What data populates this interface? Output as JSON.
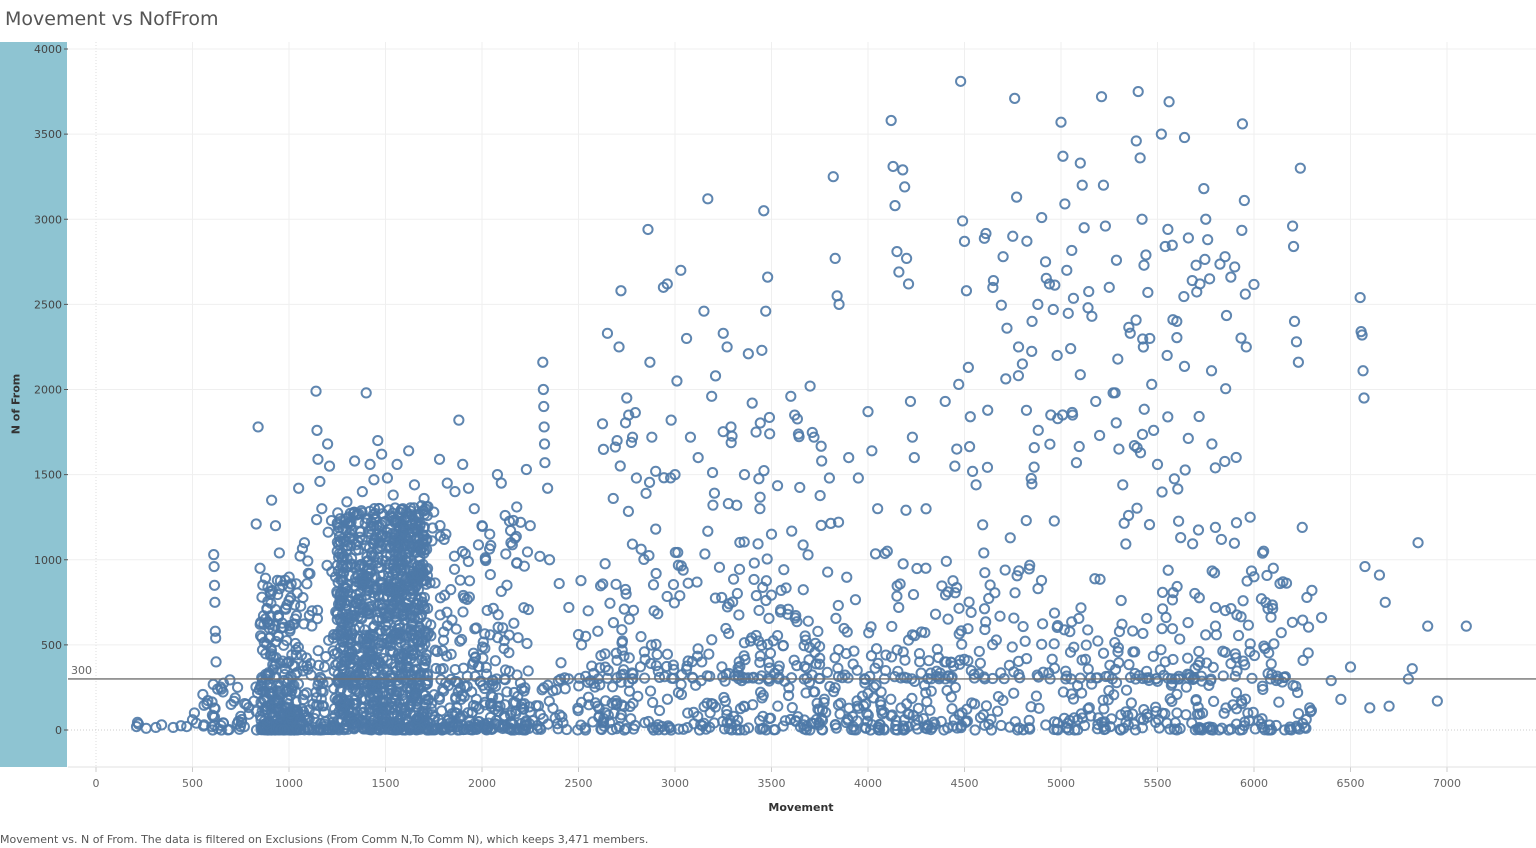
{
  "chart_data": {
    "type": "scatter",
    "title": "Movement vs NofFrom",
    "xlabel": "Movement",
    "ylabel": "N of From",
    "caption": "Movement vs. N of From. The data is filtered on Exclusions (From Comm N,To Comm N), which keeps 3,471 members.",
    "xlim": [
      -100,
      7500
    ],
    "ylim": [
      -20,
      4020
    ],
    "x_ticks": [
      0,
      500,
      1000,
      1500,
      2000,
      2500,
      3000,
      3500,
      4000,
      4500,
      5000,
      5500,
      6000,
      6500,
      7000
    ],
    "y_ticks": [
      0,
      500,
      1000,
      1500,
      2000,
      2500,
      3000,
      3500,
      4000
    ],
    "reference_line": {
      "value": 300,
      "label": "300"
    },
    "grid": true,
    "marker": "open-circle",
    "color": "#4e79a7",
    "n_points": 3471,
    "points": [
      [
        210,
        20
      ],
      [
        215,
        45
      ],
      [
        220,
        35
      ],
      [
        260,
        10
      ],
      [
        310,
        15
      ],
      [
        340,
        30
      ],
      [
        400,
        15
      ],
      [
        440,
        25
      ],
      [
        470,
        20
      ],
      [
        500,
        60
      ],
      [
        510,
        100
      ],
      [
        520,
        40
      ],
      [
        560,
        30
      ],
      [
        600,
        20
      ],
      [
        610,
        1030
      ],
      [
        612,
        960
      ],
      [
        614,
        850
      ],
      [
        616,
        750
      ],
      [
        618,
        580
      ],
      [
        620,
        540
      ],
      [
        622,
        400
      ],
      [
        630,
        240
      ],
      [
        650,
        240
      ],
      [
        700,
        150
      ],
      [
        750,
        80
      ],
      [
        780,
        150
      ],
      [
        830,
        1210
      ],
      [
        840,
        1780
      ],
      [
        850,
        950
      ],
      [
        860,
        780
      ],
      [
        870,
        620
      ],
      [
        900,
        320
      ],
      [
        910,
        1350
      ],
      [
        930,
        1200
      ],
      [
        950,
        1040
      ],
      [
        980,
        880
      ],
      [
        1000,
        760
      ],
      [
        1020,
        620
      ],
      [
        1050,
        1420
      ],
      [
        1080,
        1100
      ],
      [
        1100,
        920
      ],
      [
        1120,
        700
      ],
      [
        1140,
        1990
      ],
      [
        1145,
        1760
      ],
      [
        1150,
        1590
      ],
      [
        1160,
        1460
      ],
      [
        1170,
        1300
      ],
      [
        1200,
        1680
      ],
      [
        1210,
        1550
      ],
      [
        1220,
        1230
      ],
      [
        1250,
        1050
      ],
      [
        1280,
        880
      ],
      [
        1300,
        1340
      ],
      [
        1340,
        1580
      ],
      [
        1380,
        1400
      ],
      [
        1400,
        1980
      ],
      [
        1420,
        1560
      ],
      [
        1440,
        1470
      ],
      [
        1460,
        1700
      ],
      [
        1480,
        1620
      ],
      [
        1510,
        1480
      ],
      [
        1540,
        1380
      ],
      [
        1560,
        1560
      ],
      [
        1590,
        1300
      ],
      [
        1620,
        1640
      ],
      [
        1650,
        1440
      ],
      [
        1700,
        1360
      ],
      [
        1750,
        1280
      ],
      [
        1780,
        1590
      ],
      [
        1820,
        1450
      ],
      [
        1860,
        1400
      ],
      [
        1880,
        1820
      ],
      [
        1900,
        1560
      ],
      [
        1930,
        1420
      ],
      [
        1960,
        1300
      ],
      [
        2000,
        1200
      ],
      [
        2040,
        1150
      ],
      [
        2080,
        1500
      ],
      [
        2100,
        1450
      ],
      [
        2120,
        1260
      ],
      [
        2150,
        1100
      ],
      [
        2180,
        1310
      ],
      [
        2200,
        1220
      ],
      [
        2230,
        1530
      ],
      [
        2250,
        1200
      ],
      [
        2300,
        1020
      ],
      [
        2315,
        2160
      ],
      [
        2318,
        2000
      ],
      [
        2320,
        1900
      ],
      [
        2322,
        1780
      ],
      [
        2324,
        1680
      ],
      [
        2326,
        1570
      ],
      [
        2340,
        1420
      ],
      [
        2350,
        1000
      ],
      [
        2400,
        860
      ],
      [
        2450,
        720
      ],
      [
        2500,
        560
      ],
      [
        2550,
        700
      ],
      [
        2600,
        580
      ],
      [
        2650,
        2330
      ],
      [
        2680,
        1360
      ],
      [
        2700,
        1700
      ],
      [
        2710,
        2250
      ],
      [
        2720,
        2580
      ],
      [
        2750,
        1950
      ],
      [
        2760,
        1850
      ],
      [
        2780,
        1720
      ],
      [
        2800,
        1480
      ],
      [
        2850,
        1390
      ],
      [
        2860,
        2940
      ],
      [
        2870,
        2160
      ],
      [
        2880,
        1720
      ],
      [
        2900,
        1180
      ],
      [
        2940,
        2600
      ],
      [
        2960,
        2620
      ],
      [
        2980,
        1820
      ],
      [
        3000,
        1500
      ],
      [
        3010,
        2050
      ],
      [
        3030,
        2700
      ],
      [
        3060,
        2300
      ],
      [
        3080,
        1720
      ],
      [
        3120,
        1600
      ],
      [
        3150,
        2460
      ],
      [
        3170,
        3120
      ],
      [
        3190,
        1960
      ],
      [
        3210,
        2080
      ],
      [
        3250,
        2330
      ],
      [
        3270,
        2250
      ],
      [
        3290,
        1780
      ],
      [
        3320,
        1320
      ],
      [
        3360,
        1500
      ],
      [
        3380,
        2210
      ],
      [
        3400,
        1920
      ],
      [
        3420,
        1750
      ],
      [
        3440,
        1300
      ],
      [
        3450,
        2230
      ],
      [
        3460,
        3050
      ],
      [
        3470,
        2460
      ],
      [
        3480,
        2660
      ],
      [
        3500,
        1150
      ],
      [
        3550,
        820
      ],
      [
        3600,
        1960
      ],
      [
        3620,
        1850
      ],
      [
        3700,
        2020
      ],
      [
        3720,
        1720
      ],
      [
        3760,
        1580
      ],
      [
        3800,
        1480
      ],
      [
        3820,
        3250
      ],
      [
        3830,
        2770
      ],
      [
        3840,
        2550
      ],
      [
        3850,
        2500
      ],
      [
        3900,
        1600
      ],
      [
        3950,
        1480
      ],
      [
        4000,
        1870
      ],
      [
        4020,
        1640
      ],
      [
        4050,
        1300
      ],
      [
        4100,
        1050
      ],
      [
        4120,
        3580
      ],
      [
        4130,
        3310
      ],
      [
        4140,
        3080
      ],
      [
        4150,
        2810
      ],
      [
        4160,
        2690
      ],
      [
        4180,
        3290
      ],
      [
        4190,
        3190
      ],
      [
        4200,
        2770
      ],
      [
        4210,
        2620
      ],
      [
        4220,
        1930
      ],
      [
        4230,
        1720
      ],
      [
        4240,
        1600
      ],
      [
        4300,
        950
      ],
      [
        4350,
        680
      ],
      [
        4400,
        1930
      ],
      [
        4450,
        1550
      ],
      [
        4460,
        1650
      ],
      [
        4470,
        2030
      ],
      [
        4480,
        3810
      ],
      [
        4490,
        2990
      ],
      [
        4500,
        2870
      ],
      [
        4510,
        2580
      ],
      [
        4520,
        2130
      ],
      [
        4530,
        1840
      ],
      [
        4560,
        1440
      ],
      [
        4600,
        1040
      ],
      [
        4650,
        2640
      ],
      [
        4700,
        2780
      ],
      [
        4720,
        2360
      ],
      [
        4750,
        2900
      ],
      [
        4760,
        3710
      ],
      [
        4770,
        3130
      ],
      [
        4780,
        2250
      ],
      [
        4800,
        2150
      ],
      [
        4820,
        1230
      ],
      [
        4850,
        2400
      ],
      [
        4880,
        2500
      ],
      [
        4900,
        3010
      ],
      [
        4920,
        2750
      ],
      [
        4940,
        2620
      ],
      [
        4960,
        2470
      ],
      [
        4980,
        2200
      ],
      [
        5000,
        3570
      ],
      [
        5010,
        3370
      ],
      [
        5020,
        3090
      ],
      [
        5030,
        2700
      ],
      [
        5050,
        2240
      ],
      [
        5060,
        1850
      ],
      [
        5080,
        1570
      ],
      [
        5100,
        3330
      ],
      [
        5110,
        3200
      ],
      [
        5120,
        2950
      ],
      [
        5140,
        2480
      ],
      [
        5160,
        2430
      ],
      [
        5180,
        1930
      ],
      [
        5200,
        1730
      ],
      [
        5210,
        3720
      ],
      [
        5220,
        3200
      ],
      [
        5230,
        2960
      ],
      [
        5250,
        2600
      ],
      [
        5270,
        1980
      ],
      [
        5300,
        1650
      ],
      [
        5320,
        1440
      ],
      [
        5350,
        1260
      ],
      [
        5390,
        3460
      ],
      [
        5400,
        3750
      ],
      [
        5410,
        3360
      ],
      [
        5420,
        3000
      ],
      [
        5430,
        2730
      ],
      [
        5440,
        2790
      ],
      [
        5450,
        2570
      ],
      [
        5460,
        2300
      ],
      [
        5470,
        2030
      ],
      [
        5480,
        1760
      ],
      [
        5500,
        1560
      ],
      [
        5520,
        3500
      ],
      [
        5540,
        2840
      ],
      [
        5550,
        2200
      ],
      [
        5560,
        3690
      ],
      [
        5580,
        2410
      ],
      [
        5600,
        2400
      ],
      [
        5620,
        1130
      ],
      [
        5640,
        3480
      ],
      [
        5660,
        2890
      ],
      [
        5680,
        2640
      ],
      [
        5700,
        2730
      ],
      [
        5720,
        2620
      ],
      [
        5740,
        3180
      ],
      [
        5750,
        3000
      ],
      [
        5760,
        2880
      ],
      [
        5770,
        2650
      ],
      [
        5780,
        2110
      ],
      [
        5800,
        1190
      ],
      [
        5850,
        2780
      ],
      [
        5880,
        2660
      ],
      [
        5900,
        2720
      ],
      [
        5940,
        3560
      ],
      [
        5950,
        3110
      ],
      [
        5955,
        2560
      ],
      [
        5960,
        2250
      ],
      [
        5980,
        1250
      ],
      [
        6000,
        900
      ],
      [
        6050,
        1050
      ],
      [
        6100,
        950
      ],
      [
        6150,
        870
      ],
      [
        6200,
        2960
      ],
      [
        6205,
        2840
      ],
      [
        6210,
        2400
      ],
      [
        6220,
        2280
      ],
      [
        6230,
        2160
      ],
      [
        6240,
        3300
      ],
      [
        6250,
        1190
      ],
      [
        6300,
        820
      ],
      [
        6350,
        660
      ],
      [
        6400,
        290
      ],
      [
        6450,
        180
      ],
      [
        6500,
        370
      ],
      [
        6550,
        2540
      ],
      [
        6555,
        2340
      ],
      [
        6560,
        2320
      ],
      [
        6565,
        2110
      ],
      [
        6570,
        1950
      ],
      [
        6575,
        960
      ],
      [
        6600,
        130
      ],
      [
        6650,
        910
      ],
      [
        6680,
        750
      ],
      [
        6700,
        140
      ],
      [
        6800,
        300
      ],
      [
        6820,
        360
      ],
      [
        6850,
        1100
      ],
      [
        6900,
        610
      ],
      [
        6950,
        170
      ],
      [
        7100,
        610
      ]
    ]
  }
}
